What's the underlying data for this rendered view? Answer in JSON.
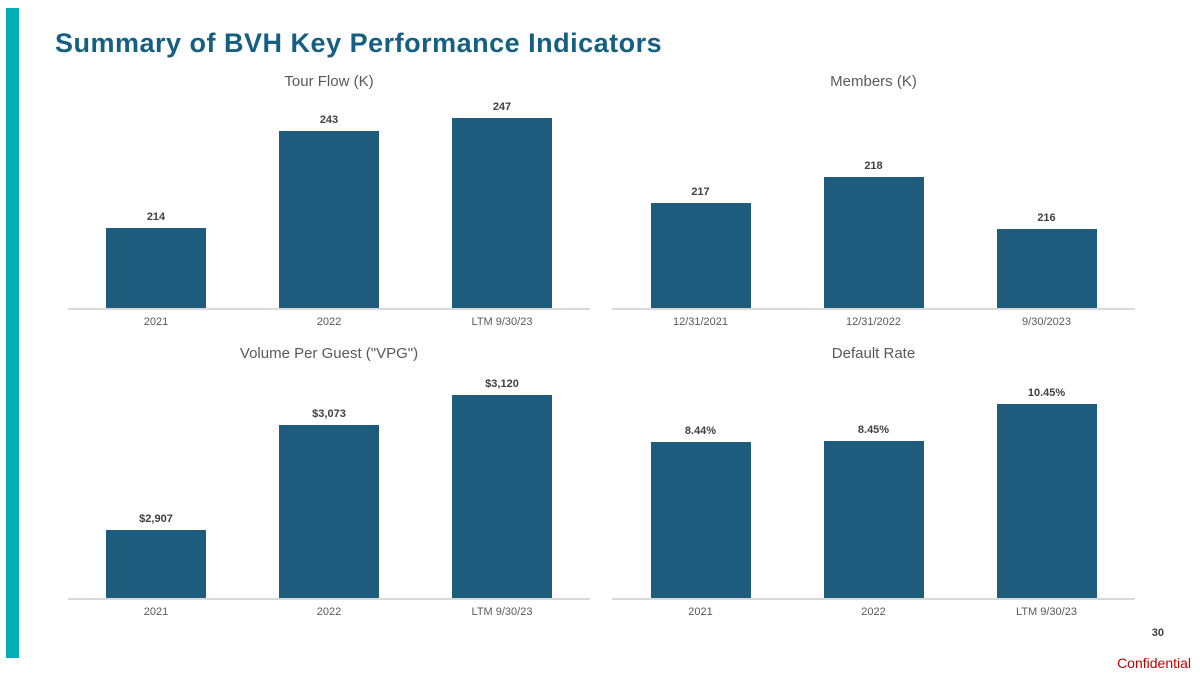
{
  "page": {
    "title": "Summary of BVH Key Performance Indicators",
    "page_number": "30",
    "confidential_label": "Confidential"
  },
  "colors": {
    "accent_bar": "#00AEB8",
    "title": "#156082",
    "bar_fill": "#1E5C7D",
    "chart_title": "#595959",
    "data_label": "#404040",
    "axis_label": "#595959",
    "axis_line": "#D9D9D9",
    "confidential": "#C00000",
    "background": "#FFFFFF"
  },
  "chart_data": [
    {
      "type": "bar",
      "title": "Tour Flow (K)",
      "categories": [
        "2021",
        "2022",
        "LTM 9/30/23"
      ],
      "values": [
        214,
        243,
        247
      ],
      "labels": [
        "214",
        "243",
        "247"
      ],
      "ylim": [
        190,
        253
      ],
      "grid": false,
      "legend": false
    },
    {
      "type": "bar",
      "title": "Members (K)",
      "categories": [
        "12/31/2021",
        "12/31/2022",
        "9/30/2023"
      ],
      "values": [
        217,
        218,
        216
      ],
      "labels": [
        "217",
        "218",
        "216"
      ],
      "ylim": [
        213,
        221
      ],
      "grid": false,
      "legend": false
    },
    {
      "type": "bar",
      "title": "Volume Per Guest (\"VPG\")",
      "categories": [
        "2021",
        "2022",
        "LTM 9/30/23"
      ],
      "values": [
        2907,
        3073,
        3120
      ],
      "labels": [
        "$2,907",
        "$3,073",
        "$3,120"
      ],
      "ylim": [
        2800,
        3160
      ],
      "grid": false,
      "legend": false
    },
    {
      "type": "bar",
      "title": "Default Rate",
      "categories": [
        "2021",
        "2022",
        "LTM 9/30/23"
      ],
      "values": [
        8.44,
        8.45,
        10.45
      ],
      "labels": [
        "8.44%",
        "8.45%",
        "10.45%"
      ],
      "ylim": [
        0,
        12.3
      ],
      "grid": false,
      "legend": false
    }
  ]
}
